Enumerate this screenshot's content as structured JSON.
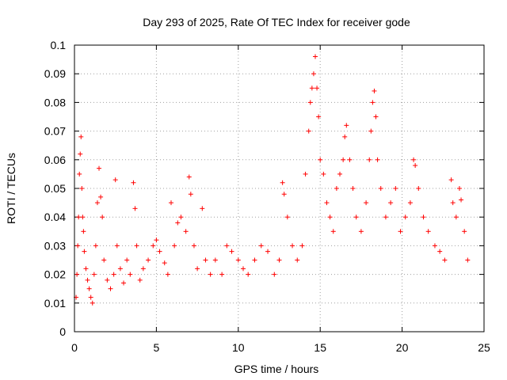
{
  "chart_data": {
    "type": "scatter",
    "title": "Day 293 of 2025, Rate Of TEC Index for receiver gode",
    "xlabel": "GPS time / hours",
    "ylabel": "ROTI / TECUs",
    "xlim": [
      0,
      25
    ],
    "ylim": [
      0,
      0.1
    ],
    "x_ticks": [
      0,
      5,
      10,
      15,
      20,
      25
    ],
    "x_tick_labels": [
      "0",
      "5",
      "10",
      "15",
      "20",
      "25"
    ],
    "y_ticks": [
      0,
      0.01,
      0.02,
      0.03,
      0.04,
      0.05,
      0.06,
      0.07,
      0.08,
      0.09,
      0.1
    ],
    "y_tick_labels": [
      "0",
      "0.01",
      "0.02",
      "0.03",
      "0.04",
      "0.05",
      "0.06",
      "0.07",
      "0.08",
      "0.09",
      "0.1"
    ],
    "grid": true,
    "marker": "+",
    "series": [
      {
        "color": "#ff0000",
        "points": [
          [
            0.1,
            0.012
          ],
          [
            0.15,
            0.02
          ],
          [
            0.2,
            0.03
          ],
          [
            0.25,
            0.04
          ],
          [
            0.3,
            0.055
          ],
          [
            0.35,
            0.062
          ],
          [
            0.4,
            0.068
          ],
          [
            0.45,
            0.05
          ],
          [
            0.5,
            0.04
          ],
          [
            0.55,
            0.035
          ],
          [
            0.6,
            0.028
          ],
          [
            0.7,
            0.022
          ],
          [
            0.8,
            0.018
          ],
          [
            0.9,
            0.015
          ],
          [
            1.0,
            0.012
          ],
          [
            1.1,
            0.01
          ],
          [
            1.2,
            0.02
          ],
          [
            1.3,
            0.03
          ],
          [
            1.4,
            0.045
          ],
          [
            1.5,
            0.057
          ],
          [
            1.6,
            0.047
          ],
          [
            1.7,
            0.04
          ],
          [
            1.8,
            0.025
          ],
          [
            2.0,
            0.018
          ],
          [
            2.2,
            0.015
          ],
          [
            2.4,
            0.02
          ],
          [
            2.5,
            0.053
          ],
          [
            2.6,
            0.03
          ],
          [
            2.8,
            0.022
          ],
          [
            3.0,
            0.017
          ],
          [
            3.2,
            0.025
          ],
          [
            3.4,
            0.02
          ],
          [
            3.6,
            0.052
          ],
          [
            3.7,
            0.043
          ],
          [
            3.8,
            0.03
          ],
          [
            4.0,
            0.018
          ],
          [
            4.2,
            0.022
          ],
          [
            4.5,
            0.025
          ],
          [
            4.8,
            0.03
          ],
          [
            5.0,
            0.032
          ],
          [
            5.2,
            0.028
          ],
          [
            5.5,
            0.024
          ],
          [
            5.7,
            0.02
          ],
          [
            5.9,
            0.045
          ],
          [
            6.1,
            0.03
          ],
          [
            6.3,
            0.038
          ],
          [
            6.5,
            0.04
          ],
          [
            6.8,
            0.035
          ],
          [
            7.0,
            0.054
          ],
          [
            7.1,
            0.048
          ],
          [
            7.3,
            0.03
          ],
          [
            7.5,
            0.022
          ],
          [
            7.8,
            0.043
          ],
          [
            8.0,
            0.025
          ],
          [
            8.3,
            0.02
          ],
          [
            8.6,
            0.025
          ],
          [
            9.0,
            0.02
          ],
          [
            9.3,
            0.03
          ],
          [
            9.6,
            0.028
          ],
          [
            10.0,
            0.025
          ],
          [
            10.3,
            0.022
          ],
          [
            10.6,
            0.02
          ],
          [
            11.0,
            0.025
          ],
          [
            11.4,
            0.03
          ],
          [
            11.8,
            0.028
          ],
          [
            12.2,
            0.02
          ],
          [
            12.5,
            0.025
          ],
          [
            12.7,
            0.052
          ],
          [
            12.8,
            0.048
          ],
          [
            13.0,
            0.04
          ],
          [
            13.3,
            0.03
          ],
          [
            13.6,
            0.025
          ],
          [
            13.9,
            0.03
          ],
          [
            14.1,
            0.055
          ],
          [
            14.3,
            0.07
          ],
          [
            14.4,
            0.08
          ],
          [
            14.5,
            0.085
          ],
          [
            14.6,
            0.09
          ],
          [
            14.7,
            0.096
          ],
          [
            14.8,
            0.085
          ],
          [
            14.9,
            0.075
          ],
          [
            15.0,
            0.06
          ],
          [
            15.2,
            0.055
          ],
          [
            15.4,
            0.045
          ],
          [
            15.6,
            0.04
          ],
          [
            15.8,
            0.035
          ],
          [
            16.0,
            0.05
          ],
          [
            16.2,
            0.055
          ],
          [
            16.4,
            0.06
          ],
          [
            16.5,
            0.068
          ],
          [
            16.6,
            0.072
          ],
          [
            16.8,
            0.06
          ],
          [
            17.0,
            0.05
          ],
          [
            17.2,
            0.04
          ],
          [
            17.5,
            0.035
          ],
          [
            17.8,
            0.045
          ],
          [
            18.0,
            0.06
          ],
          [
            18.1,
            0.07
          ],
          [
            18.2,
            0.08
          ],
          [
            18.3,
            0.084
          ],
          [
            18.4,
            0.075
          ],
          [
            18.5,
            0.06
          ],
          [
            18.7,
            0.05
          ],
          [
            19.0,
            0.04
          ],
          [
            19.3,
            0.045
          ],
          [
            19.6,
            0.05
          ],
          [
            19.9,
            0.035
          ],
          [
            20.2,
            0.04
          ],
          [
            20.5,
            0.045
          ],
          [
            20.7,
            0.06
          ],
          [
            20.8,
            0.058
          ],
          [
            21.0,
            0.05
          ],
          [
            21.3,
            0.04
          ],
          [
            21.6,
            0.035
          ],
          [
            22.0,
            0.03
          ],
          [
            22.3,
            0.028
          ],
          [
            22.6,
            0.025
          ],
          [
            23.0,
            0.053
          ],
          [
            23.1,
            0.045
          ],
          [
            23.3,
            0.04
          ],
          [
            23.5,
            0.05
          ],
          [
            23.6,
            0.046
          ],
          [
            23.8,
            0.035
          ],
          [
            24.0,
            0.025
          ]
        ]
      }
    ]
  }
}
